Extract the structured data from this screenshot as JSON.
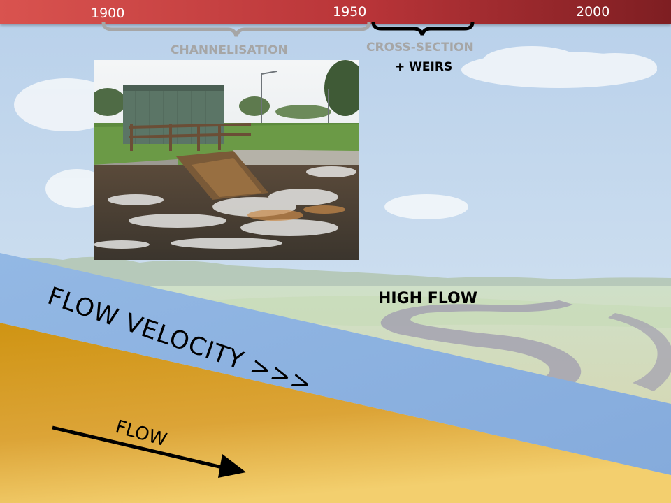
{
  "timeline": {
    "years": [
      "1900",
      "1950",
      "2000"
    ],
    "colors": {
      "bar_start": "#d9534f",
      "bar_end": "#7e1e22"
    }
  },
  "periods": {
    "channelisation": "CHANNELISATION",
    "cross_section_line1": "CROSS-SECTION",
    "cross_section_line2": "+ WEIRS"
  },
  "labels": {
    "flow_velocity": "FLOW VELOCITY >>>",
    "flow": "FLOW",
    "high_flow": "HIGH FLOW"
  },
  "colors": {
    "sky": "#c5d9ee",
    "velocity_band": "#8cb1e0",
    "soil": "#d49a14",
    "muted_label": "#a6a6a6"
  },
  "icons": [
    "weir-photo",
    "flow-arrow-icon",
    "timeline-brace-icon"
  ]
}
